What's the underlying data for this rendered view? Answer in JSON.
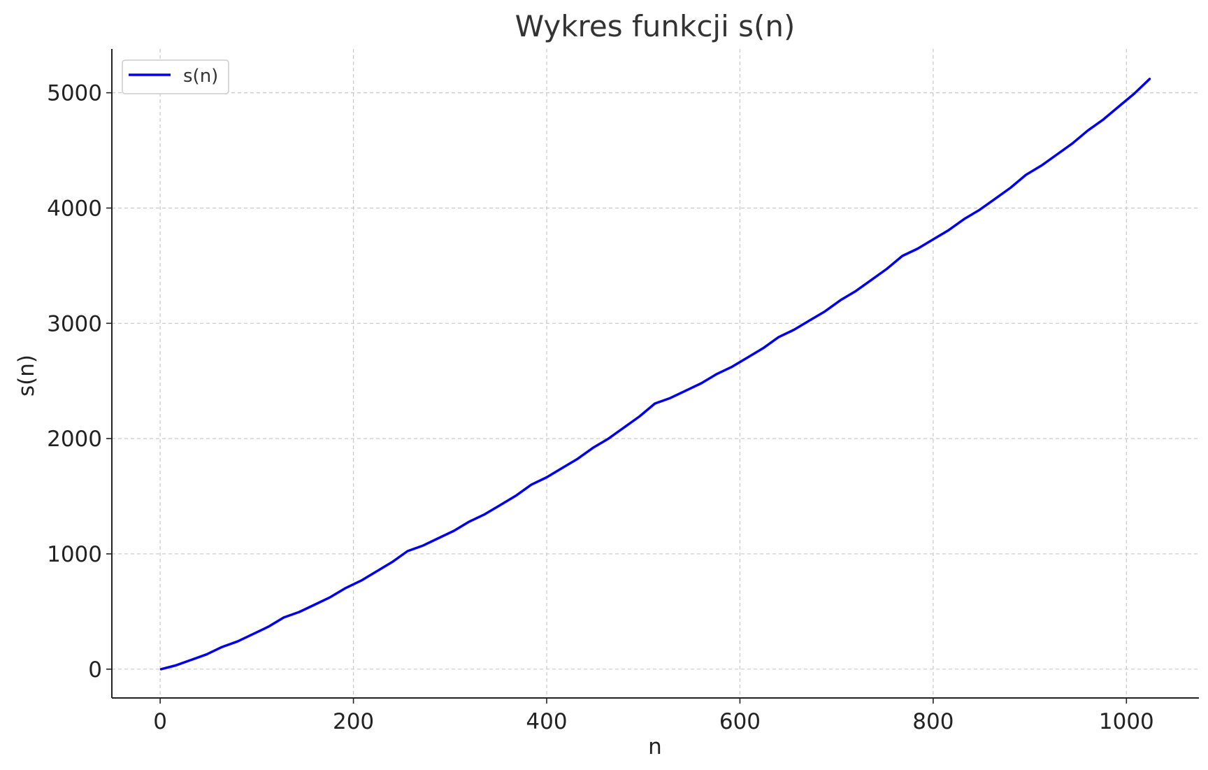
{
  "chart_data": {
    "type": "line",
    "title": "Wykres funkcji s(n)",
    "xlabel": "n",
    "ylabel": "s(n)",
    "xlim": [
      -50,
      1075
    ],
    "ylim": [
      -250,
      5380
    ],
    "xticks": [
      0,
      200,
      400,
      600,
      800,
      1000
    ],
    "yticks": [
      0,
      1000,
      2000,
      3000,
      4000,
      5000
    ],
    "x_tick_labels": [
      "0",
      "200",
      "400",
      "600",
      "800",
      "1000"
    ],
    "y_tick_labels": [
      "0",
      "1000",
      "2000",
      "3000",
      "4000",
      "5000"
    ],
    "grid": true,
    "legend_position": "top-left",
    "series": [
      {
        "name": "s(n)",
        "color": "#0000ee",
        "x": [
          1,
          16,
          32,
          48,
          64,
          80,
          96,
          112,
          128,
          144,
          160,
          176,
          192,
          208,
          224,
          240,
          256,
          272,
          288,
          304,
          320,
          336,
          352,
          368,
          384,
          400,
          416,
          432,
          448,
          464,
          480,
          496,
          512,
          528,
          544,
          560,
          576,
          592,
          608,
          624,
          640,
          656,
          672,
          688,
          704,
          720,
          736,
          752,
          768,
          784,
          800,
          816,
          832,
          848,
          864,
          880,
          896,
          912,
          928,
          944,
          960,
          976,
          992,
          1008,
          1024
        ],
        "y": [
          0,
          32,
          80,
          128,
          192,
          240,
          304,
          368,
          448,
          496,
          560,
          624,
          704,
          768,
          848,
          928,
          1024,
          1072,
          1136,
          1200,
          1280,
          1344,
          1424,
          1504,
          1600,
          1664,
          1744,
          1824,
          1920,
          2000,
          2096,
          2192,
          2304,
          2352,
          2416,
          2480,
          2560,
          2624,
          2704,
          2784,
          2880,
          2944,
          3024,
          3104,
          3200,
          3280,
          3376,
          3472,
          3584,
          3648,
          3728,
          3808,
          3904,
          3984,
          4080,
          4176,
          4288,
          4368,
          4464,
          4560,
          4672,
          4768,
          4880,
          4992,
          5120
        ]
      }
    ]
  }
}
